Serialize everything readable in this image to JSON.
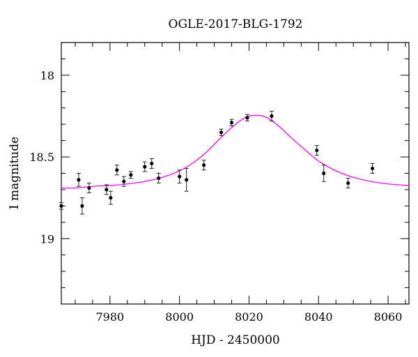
{
  "chart_data": {
    "type": "scatter",
    "title": "OGLE-2017-BLG-1792",
    "xlabel": "HJD - 2450000",
    "ylabel": "I magnitude",
    "xlim": [
      7966,
      8066
    ],
    "ylim": [
      19.4,
      17.8
    ],
    "y_inverted": true,
    "grid": false,
    "x_major_ticks": [
      7980,
      8000,
      8020,
      8040,
      8060
    ],
    "x_minor_step": 5,
    "y_major_ticks": [
      18,
      18.5,
      19
    ],
    "y_minor_step": 0.1,
    "x_tick_labels": [
      "7980",
      "8000",
      "8020",
      "8040",
      "8060"
    ],
    "y_tick_labels": [
      "18",
      "18.5",
      "19"
    ],
    "colors": {
      "points": "#000000",
      "model": "#ff00ff"
    },
    "series": [
      {
        "kind": "points",
        "x": [
          7966.0,
          7971.0,
          7972.0,
          7974.0,
          7979.0,
          7980.2,
          7982.0,
          7984.0,
          7986.0,
          7990.0,
          7992.0,
          7994.0,
          8000.0,
          8002.0,
          8007.0,
          8012.0,
          8015.0,
          8019.5,
          8026.5,
          8039.5,
          8041.5,
          8048.5,
          8055.5
        ],
        "y": [
          18.8,
          18.64,
          18.8,
          18.69,
          18.7,
          18.75,
          18.58,
          18.65,
          18.61,
          18.56,
          18.54,
          18.63,
          18.62,
          18.64,
          18.55,
          18.35,
          18.29,
          18.26,
          18.25,
          18.46,
          18.6,
          18.66,
          18.57
        ],
        "err": [
          0.02,
          0.04,
          0.05,
          0.03,
          0.03,
          0.04,
          0.03,
          0.03,
          0.02,
          0.03,
          0.03,
          0.03,
          0.04,
          0.07,
          0.03,
          0.02,
          0.02,
          0.02,
          0.03,
          0.03,
          0.05,
          0.03,
          0.03
        ]
      },
      {
        "kind": "model",
        "x": [
          7966,
          7970,
          7975,
          7980,
          7985,
          7990,
          7995,
          8000,
          8004,
          8008,
          8012,
          8015,
          8018,
          8020,
          8022,
          8024,
          8026,
          8029,
          8032,
          8036,
          8040,
          8045,
          8050,
          8055,
          8060,
          8066
        ],
        "y": [
          18.69,
          18.69,
          18.68,
          18.675,
          18.665,
          18.65,
          18.625,
          18.585,
          18.535,
          18.465,
          18.38,
          18.32,
          18.27,
          18.25,
          18.245,
          18.25,
          18.27,
          18.32,
          18.38,
          18.455,
          18.525,
          18.585,
          18.625,
          18.65,
          18.665,
          18.675
        ]
      }
    ]
  }
}
